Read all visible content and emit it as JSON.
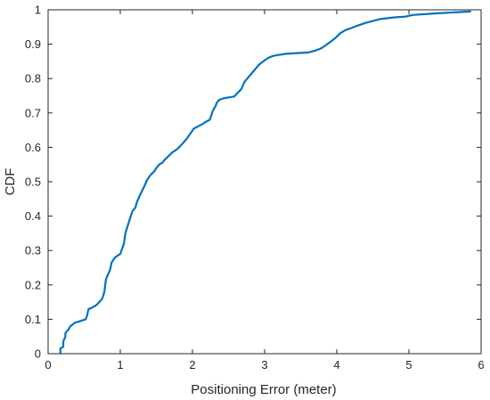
{
  "chart_data": {
    "type": "line",
    "title": "",
    "xlabel": "Positioning Error (meter)",
    "ylabel": "CDF",
    "xlim": [
      0,
      6
    ],
    "ylim": [
      0,
      1
    ],
    "xticks": [
      0,
      1,
      2,
      3,
      4,
      5,
      6
    ],
    "yticks": [
      0,
      0.1,
      0.2,
      0.3,
      0.4,
      0.5,
      0.6,
      0.7,
      0.8,
      0.9,
      1
    ],
    "grid": false,
    "legend": "none",
    "series": [
      {
        "color": "#0072bd",
        "x": [
          0.17,
          0.17,
          0.21,
          0.21,
          0.24,
          0.24,
          0.28,
          0.31,
          0.37,
          0.45,
          0.52,
          0.54,
          0.56,
          0.6,
          0.66,
          0.7,
          0.75,
          0.78,
          0.8,
          0.82,
          0.86,
          0.88,
          0.91,
          0.93,
          0.96,
          1.0,
          1.05,
          1.07,
          1.1,
          1.13,
          1.17,
          1.21,
          1.23,
          1.27,
          1.33,
          1.37,
          1.42,
          1.47,
          1.5,
          1.54,
          1.58,
          1.62,
          1.67,
          1.72,
          1.79,
          1.86,
          1.92,
          1.97,
          2.02,
          2.07,
          2.14,
          2.2,
          2.24,
          2.28,
          2.32,
          2.34,
          2.37,
          2.42,
          2.5,
          2.58,
          2.62,
          2.68,
          2.72,
          2.76,
          2.8,
          2.84,
          2.92,
          3.0,
          3.05,
          3.12,
          3.2,
          3.3,
          3.45,
          3.6,
          3.68,
          3.75,
          3.8,
          3.9,
          3.98,
          4.05,
          4.12,
          4.2,
          4.3,
          4.4,
          4.6,
          4.8,
          4.95,
          5.05,
          5.4,
          5.85
        ],
        "y": [
          0.0,
          0.015,
          0.02,
          0.035,
          0.05,
          0.06,
          0.07,
          0.08,
          0.09,
          0.095,
          0.1,
          0.11,
          0.13,
          0.133,
          0.14,
          0.148,
          0.16,
          0.18,
          0.215,
          0.225,
          0.245,
          0.265,
          0.275,
          0.28,
          0.285,
          0.29,
          0.32,
          0.35,
          0.37,
          0.39,
          0.415,
          0.425,
          0.44,
          0.46,
          0.485,
          0.505,
          0.52,
          0.53,
          0.54,
          0.55,
          0.555,
          0.565,
          0.575,
          0.585,
          0.595,
          0.61,
          0.625,
          0.64,
          0.655,
          0.66,
          0.668,
          0.676,
          0.68,
          0.705,
          0.72,
          0.73,
          0.738,
          0.742,
          0.745,
          0.748,
          0.757,
          0.77,
          0.79,
          0.8,
          0.81,
          0.82,
          0.84,
          0.853,
          0.86,
          0.866,
          0.869,
          0.872,
          0.874,
          0.876,
          0.88,
          0.885,
          0.89,
          0.905,
          0.918,
          0.932,
          0.941,
          0.947,
          0.955,
          0.962,
          0.973,
          0.978,
          0.98,
          0.985,
          0.99,
          0.995
        ]
      }
    ]
  }
}
